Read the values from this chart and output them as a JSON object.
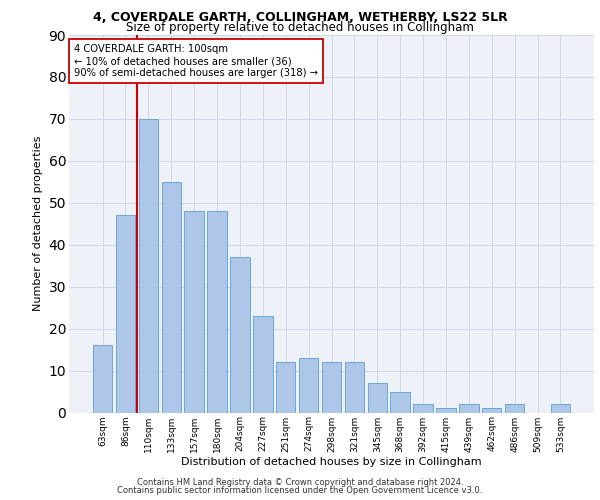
{
  "title1": "4, COVERDALE GARTH, COLLINGHAM, WETHERBY, LS22 5LR",
  "title2": "Size of property relative to detached houses in Collingham",
  "xlabel": "Distribution of detached houses by size in Collingham",
  "ylabel": "Number of detached properties",
  "categories": [
    "63sqm",
    "86sqm",
    "110sqm",
    "133sqm",
    "157sqm",
    "180sqm",
    "204sqm",
    "227sqm",
    "251sqm",
    "274sqm",
    "298sqm",
    "321sqm",
    "345sqm",
    "368sqm",
    "392sqm",
    "415sqm",
    "439sqm",
    "462sqm",
    "486sqm",
    "509sqm",
    "533sqm"
  ],
  "values": [
    16,
    47,
    70,
    55,
    48,
    48,
    37,
    23,
    12,
    13,
    12,
    12,
    7,
    5,
    2,
    1,
    2,
    1,
    2,
    0,
    2
  ],
  "bar_color": "#aec6e8",
  "bar_edge_color": "#5a9fd4",
  "vline_color": "#cc0000",
  "annotation_text": "4 COVERDALE GARTH: 100sqm\n← 10% of detached houses are smaller (36)\n90% of semi-detached houses are larger (318) →",
  "annotation_box_color": "#ffffff",
  "annotation_box_edge": "#cc0000",
  "ylim": [
    0,
    90
  ],
  "yticks": [
    0,
    10,
    20,
    30,
    40,
    50,
    60,
    70,
    80,
    90
  ],
  "grid_color": "#d0d8e8",
  "background_color": "#eef2f8",
  "footer1": "Contains HM Land Registry data © Crown copyright and database right 2024.",
  "footer2": "Contains public sector information licensed under the Open Government Licence v3.0."
}
